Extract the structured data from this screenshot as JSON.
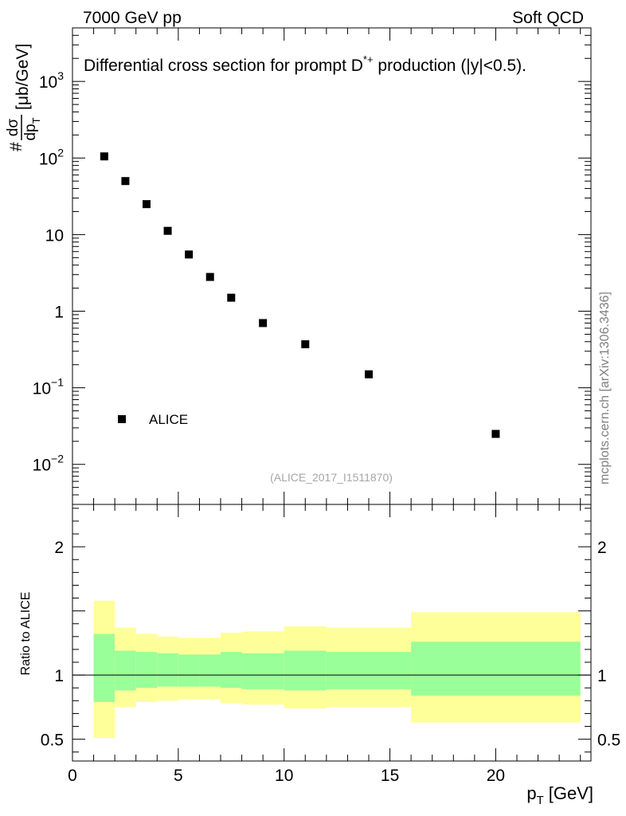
{
  "header": {
    "energy_label": "7000 GeV pp",
    "category_label": "Soft QCD"
  },
  "side_label": "mcplots.cern.ch [arXiv:1306.3436]",
  "chart_data": [
    {
      "type": "scatter",
      "title": "Differential cross section for prompt D*+ production (|y|<0.5).",
      "title_main": "Differential cross section for prompt D",
      "title_sup": "*+",
      "title_tail": " production (|y|<0.5).",
      "ylabel": "# dσ/dp_T [μb/GeV]",
      "ylabel_prefix": "#",
      "ylabel_num": "dσ",
      "ylabel_den": "dp",
      "ylabel_den_sub": "T",
      "ylabel_unit": "[μb/GeV]",
      "yscale": "log",
      "ylim": [
        0.003,
        5000
      ],
      "xlim": [
        0,
        24.5
      ],
      "yticks": [
        {
          "value": 0.01,
          "base": "10",
          "exp": "−2"
        },
        {
          "value": 0.1,
          "base": "10",
          "exp": "−1"
        },
        {
          "value": 1,
          "base": "1",
          "exp": ""
        },
        {
          "value": 10,
          "base": "10",
          "exp": ""
        },
        {
          "value": 100,
          "base": "10",
          "exp": "2"
        },
        {
          "value": 1000,
          "base": "10",
          "exp": "3"
        }
      ],
      "legend": {
        "label": "ALICE",
        "position": "bottom-left"
      },
      "watermark": "(ALICE_2017_I1511870)",
      "series": [
        {
          "name": "ALICE",
          "x": [
            1.5,
            2.5,
            3.5,
            4.5,
            5.5,
            6.5,
            7.5,
            9,
            11,
            14,
            20
          ],
          "y": [
            105,
            50,
            25,
            11.2,
            5.5,
            2.8,
            1.5,
            0.7,
            0.37,
            0.15,
            0.025
          ]
        }
      ]
    },
    {
      "type": "area",
      "ylabel": "Ratio to ALICE",
      "xlabel": "p_T [GeV]",
      "xlabel_main": "p",
      "xlabel_sub": "T",
      "xlabel_unit": "[GeV]",
      "xlim": [
        0,
        24.5
      ],
      "ylim": [
        0.33,
        2.33
      ],
      "xticks": [
        0,
        5,
        10,
        15,
        20
      ],
      "yticks": [
        0.5,
        1,
        2
      ],
      "ytick_labels": [
        "0.5",
        "1",
        "2"
      ],
      "reference_line": 1,
      "bins": [
        {
          "lo": 1,
          "hi": 2,
          "inner_lo": 0.79,
          "inner_hi": 1.32,
          "outer_lo": 0.51,
          "outer_hi": 1.58
        },
        {
          "lo": 2,
          "hi": 3,
          "inner_lo": 0.88,
          "inner_hi": 1.19,
          "outer_lo": 0.75,
          "outer_hi": 1.37
        },
        {
          "lo": 3,
          "hi": 4,
          "inner_lo": 0.9,
          "inner_hi": 1.18,
          "outer_lo": 0.79,
          "outer_hi": 1.32
        },
        {
          "lo": 4,
          "hi": 5,
          "inner_lo": 0.91,
          "inner_hi": 1.17,
          "outer_lo": 0.8,
          "outer_hi": 1.3
        },
        {
          "lo": 5,
          "hi": 6,
          "inner_lo": 0.91,
          "inner_hi": 1.16,
          "outer_lo": 0.81,
          "outer_hi": 1.29
        },
        {
          "lo": 6,
          "hi": 7,
          "inner_lo": 0.91,
          "inner_hi": 1.16,
          "outer_lo": 0.81,
          "outer_hi": 1.29
        },
        {
          "lo": 7,
          "hi": 8,
          "inner_lo": 0.9,
          "inner_hi": 1.18,
          "outer_lo": 0.78,
          "outer_hi": 1.33
        },
        {
          "lo": 8,
          "hi": 10,
          "inner_lo": 0.89,
          "inner_hi": 1.17,
          "outer_lo": 0.77,
          "outer_hi": 1.34
        },
        {
          "lo": 10,
          "hi": 12,
          "inner_lo": 0.88,
          "inner_hi": 1.19,
          "outer_lo": 0.74,
          "outer_hi": 1.38
        },
        {
          "lo": 12,
          "hi": 16,
          "inner_lo": 0.89,
          "inner_hi": 1.18,
          "outer_lo": 0.75,
          "outer_hi": 1.37
        },
        {
          "lo": 16,
          "hi": 24,
          "inner_lo": 0.84,
          "inner_hi": 1.26,
          "outer_lo": 0.63,
          "outer_hi": 1.49
        }
      ],
      "colors": {
        "inner": "#99ff99",
        "outer": "#ffff99",
        "line": "#000000"
      }
    }
  ]
}
